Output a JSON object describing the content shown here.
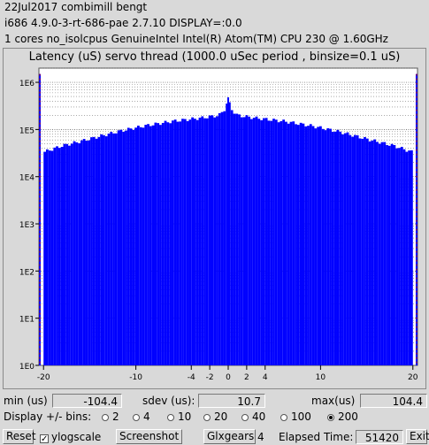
{
  "header": {
    "line1": "22Jul2017 combimill bengt",
    "line2": "i686  4.9.0-3-rt-686-pae  2.7.10  DISPLAY=:0.0",
    "line3": "1 cores  no_isolcpus   GenuineIntel  Intel(R) Atom(TM) CPU 230 @ 1.60GHz"
  },
  "chart_data": {
    "type": "bar",
    "title": "Latency (uS) servo thread (1000.0 uSec period , binsize=0.1 uS)",
    "xlim": [
      -20.5,
      20.5
    ],
    "ylim": [
      1,
      2000000
    ],
    "yscale": "log",
    "x_ticks": [
      -20,
      -10,
      -4,
      -2,
      0,
      2,
      4,
      10,
      20
    ],
    "y_ticks": [
      {
        "value": 1,
        "label": "1E0"
      },
      {
        "value": 10,
        "label": "1E1"
      },
      {
        "value": 100,
        "label": "1E2"
      },
      {
        "value": 1000,
        "label": "1E3"
      },
      {
        "value": 10000,
        "label": "1E4"
      },
      {
        "value": 100000,
        "label": "1E5"
      },
      {
        "value": 1000000,
        "label": "1E6"
      }
    ],
    "grid": true,
    "bar_color": "#0000ff",
    "envelope": [
      {
        "x": -20,
        "y": 33000
      },
      {
        "x": -18,
        "y": 45000
      },
      {
        "x": -15,
        "y": 63000
      },
      {
        "x": -12,
        "y": 90000
      },
      {
        "x": -9,
        "y": 120000
      },
      {
        "x": -6,
        "y": 150000
      },
      {
        "x": -3,
        "y": 175000
      },
      {
        "x": -1,
        "y": 200000
      },
      {
        "x": -0.5,
        "y": 250000
      },
      {
        "x": -0.2,
        "y": 300000
      },
      {
        "x": 0,
        "y": 480000
      },
      {
        "x": 0.2,
        "y": 300000
      },
      {
        "x": 0.5,
        "y": 250000
      },
      {
        "x": 1,
        "y": 200000
      },
      {
        "x": 3,
        "y": 175000
      },
      {
        "x": 6,
        "y": 150000
      },
      {
        "x": 9,
        "y": 120000
      },
      {
        "x": 12,
        "y": 90000
      },
      {
        "x": 15,
        "y": 63000
      },
      {
        "x": 18,
        "y": 45000
      },
      {
        "x": 20,
        "y": 33000
      }
    ],
    "edge_spikes": [
      {
        "x": -20.4,
        "y": 1500000
      },
      {
        "x": 20.4,
        "y": 1500000
      }
    ]
  },
  "stats": {
    "min_label": "min (us)",
    "min_value": "-104.4",
    "sdev_label": "sdev (us):",
    "sdev_value": "10.7",
    "max_label": "max(us)",
    "max_value": "104.4"
  },
  "bins": {
    "label": "Display +/- bins:",
    "options": [
      "2",
      "4",
      "10",
      "20",
      "40",
      "100",
      "200"
    ],
    "selected": "200"
  },
  "footer": {
    "reset": "Reset",
    "ylogscale": "ylogscale",
    "ylogscale_checked": true,
    "screenshot": "Screenshot",
    "glxgears": "Glxgears",
    "glxgears_count": "4",
    "elapsed_label": "Elapsed Time:",
    "elapsed_value": "51420",
    "exit": "Exit"
  }
}
